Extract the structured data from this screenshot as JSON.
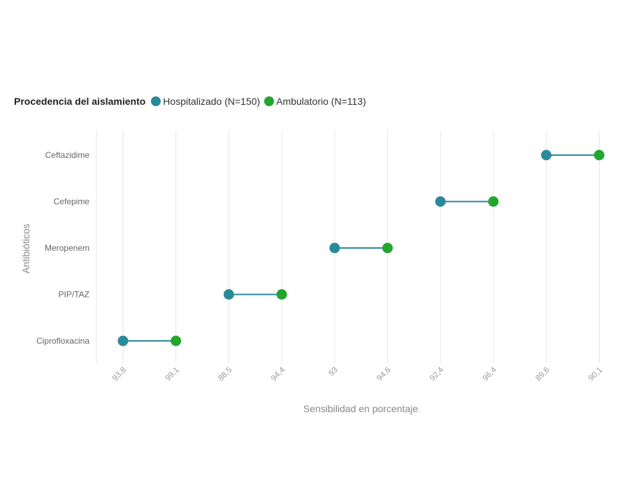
{
  "chart_data": {
    "type": "dumbbell",
    "title": "",
    "legend": {
      "title": "Procedencia del aislamiento",
      "position": "top-left"
    },
    "xlabel": "Sensibilidad en porcentaje",
    "ylabel": "Antibióticos",
    "x_tick_labels": [
      "93,8",
      "99,1",
      "88,5",
      "94,4",
      "93",
      "94,6",
      "92,4",
      "96,4",
      "89,6",
      "90,1"
    ],
    "categories": [
      "Ceftazidime",
      "Cefepime",
      "Meropenem",
      "PIP/TAZ",
      "Ciprofloxacina"
    ],
    "series": [
      {
        "name": "Hospitalizado (N=150)",
        "color": "#2a8a9a",
        "values": [
          89.6,
          92.4,
          93,
          88.5,
          93.8
        ]
      },
      {
        "name": "Ambulatorio (N=113)",
        "color": "#22a62e",
        "values": [
          90.1,
          96.4,
          94.6,
          94.4,
          99.1
        ]
      }
    ],
    "connector_color": "#2a8a9a",
    "grid": true
  }
}
